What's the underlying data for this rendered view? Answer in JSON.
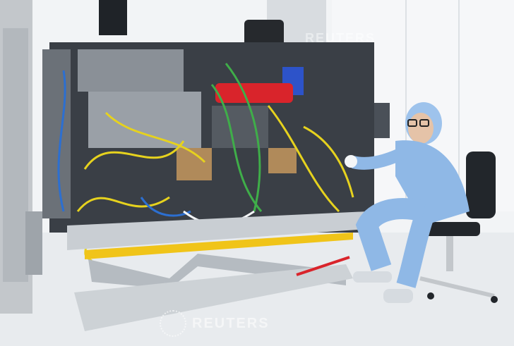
{
  "scene": {
    "watermark_top": "REUTERS",
    "watermark_bottom": "REUTERS",
    "colors": {
      "wall": "#f3f5f7",
      "floor": "#e9ecef",
      "machine_dark": "#3a3f46",
      "suit": "#8fb8e6",
      "cable_yellow": "#e6d21e",
      "cable_green": "#3fae49",
      "cable_blue": "#2c6fd1",
      "red_part": "#d9242b",
      "lift": "#c9ced3",
      "hazard_yellow": "#f0c419"
    }
  }
}
